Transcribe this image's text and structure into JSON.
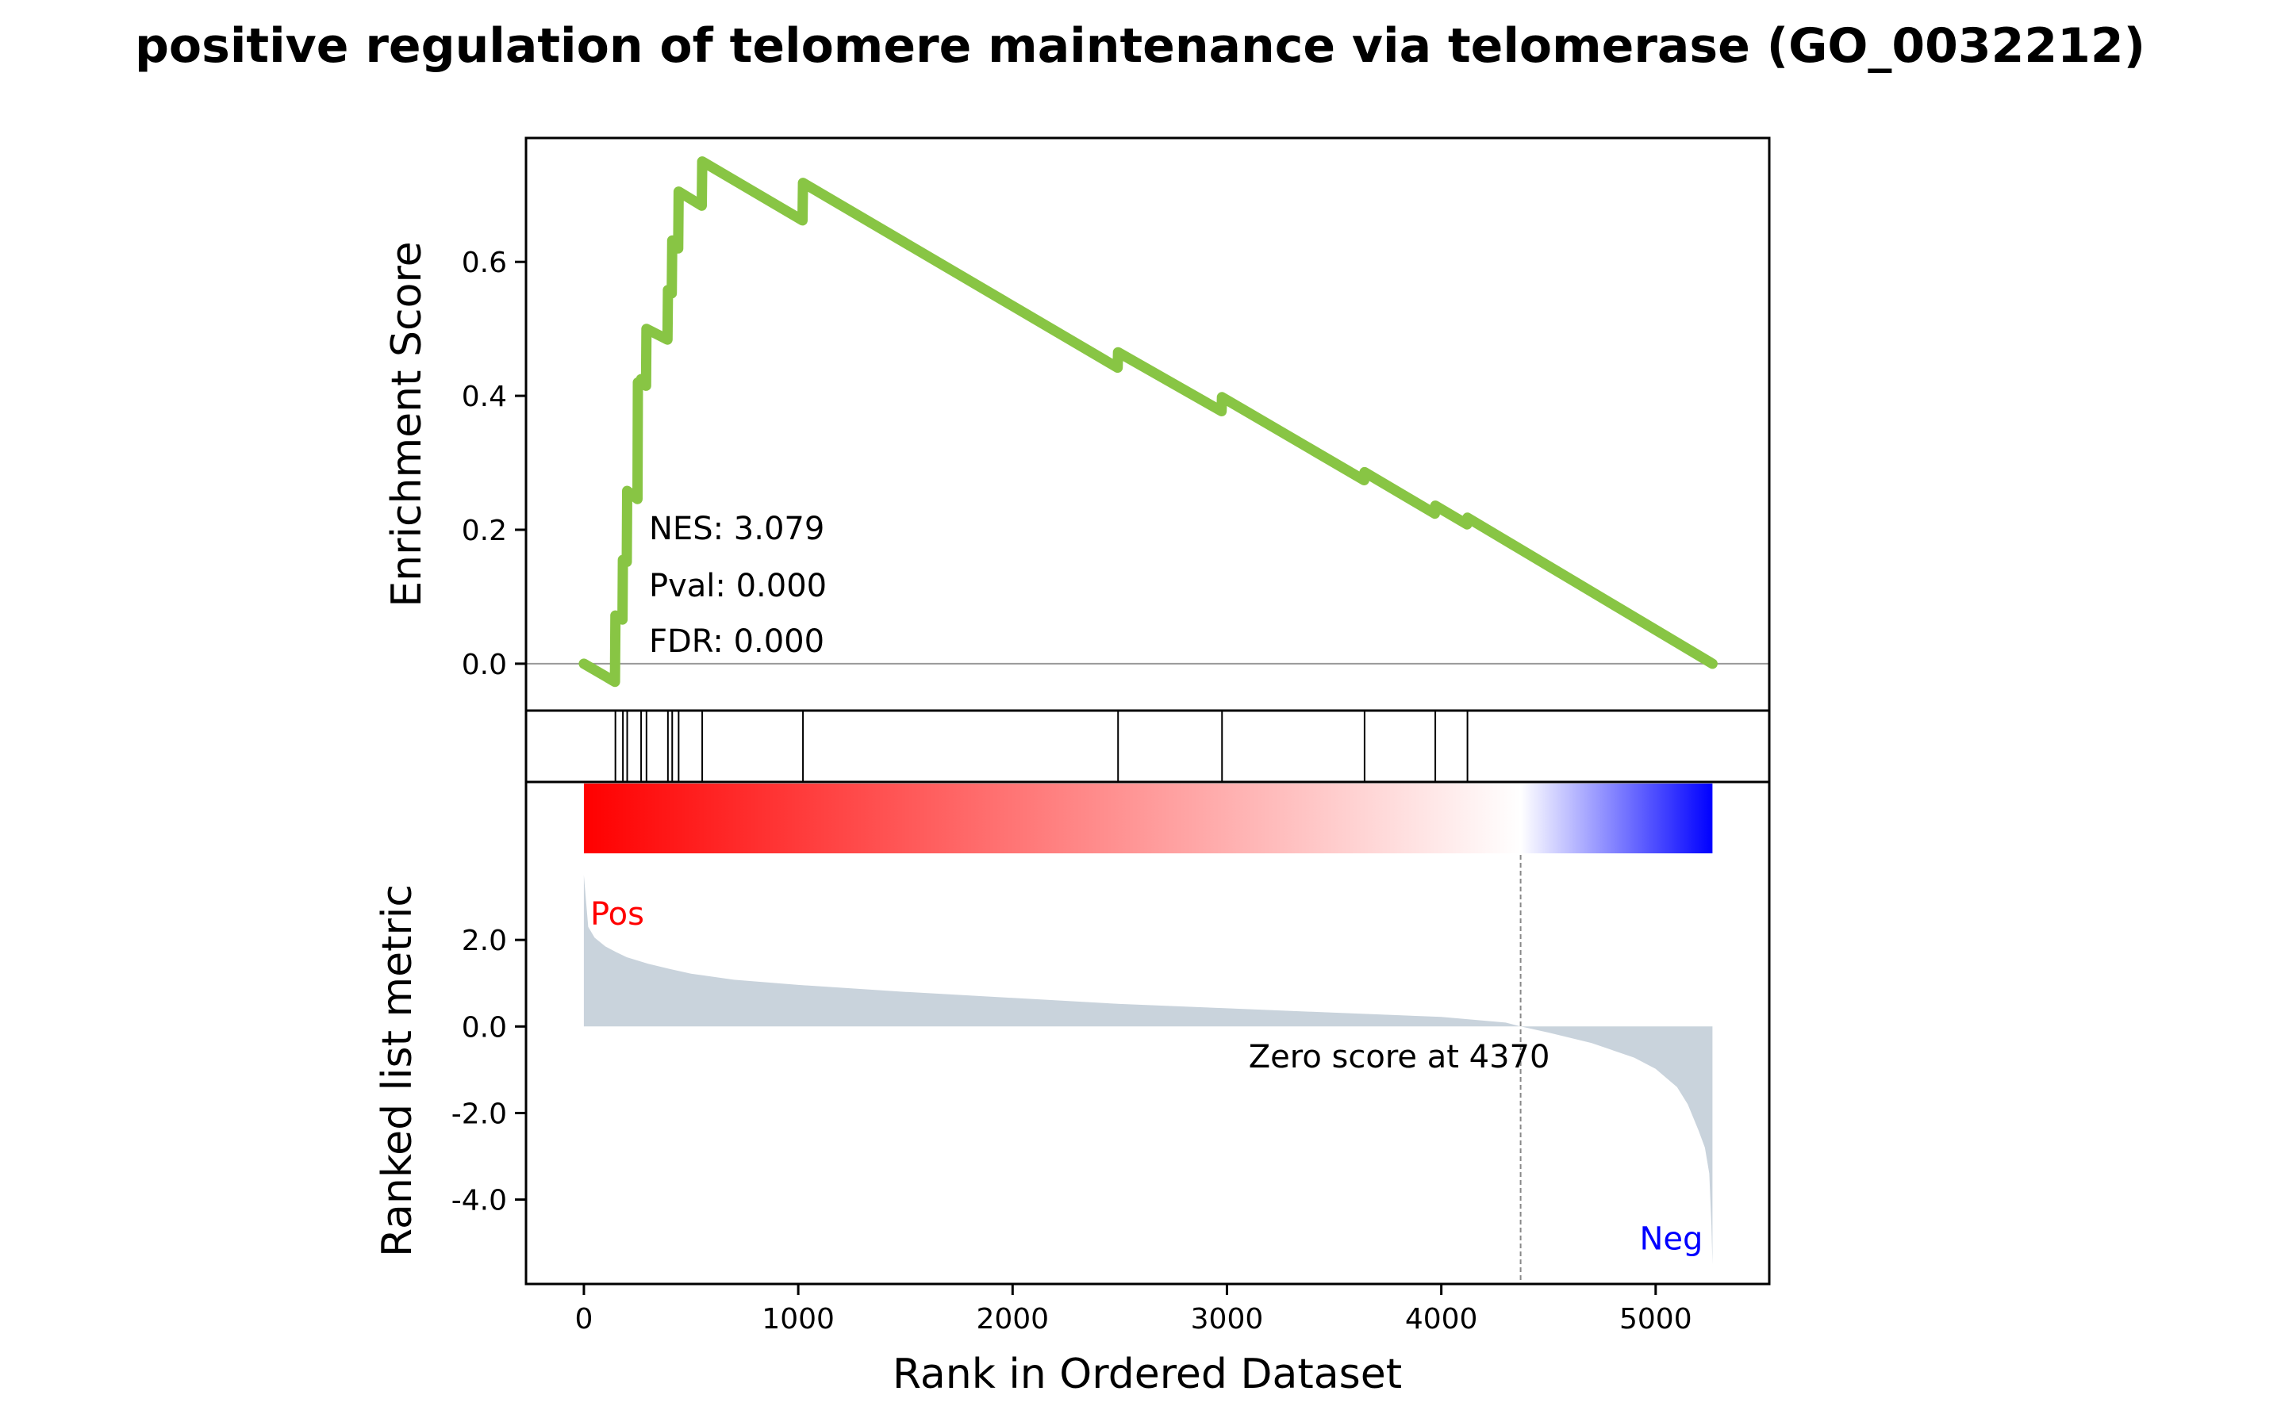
{
  "chart_data": {
    "type": "line",
    "title": "positive regulation of telomere maintenance via telomerase (GO_0032212)",
    "xlabel": "Rank in Ordered Dataset",
    "xlim": [
      -270,
      5530
    ],
    "x_ticks": [
      0,
      1000,
      2000,
      3000,
      4000,
      5000
    ],
    "x_tick_labels": [
      "0",
      "1000",
      "2000",
      "3000",
      "4000",
      "5000"
    ],
    "n_genes": 5265,
    "enrichment": {
      "ylabel": "Enrichment Score",
      "ylim": [
        -0.07,
        0.785
      ],
      "y_ticks": [
        0.0,
        0.2,
        0.4,
        0.6
      ],
      "y_tick_labels": [
        "0.0",
        "0.2",
        "0.4",
        "0.6"
      ],
      "line_color": "#88C544",
      "zero_line_color": "#999999",
      "es_curve": {
        "x": [
          0,
          145,
          147,
          180,
          182,
          200,
          202,
          250,
          252,
          265,
          267,
          290,
          292,
          390,
          392,
          410,
          412,
          440,
          442,
          550,
          552,
          1020,
          1022,
          2490,
          2492,
          2975,
          2977,
          3640,
          3642,
          3970,
          3972,
          4120,
          4122,
          5265
        ],
        "y": [
          0.0,
          -0.027,
          0.072,
          0.066,
          0.155,
          0.152,
          0.258,
          0.246,
          0.42,
          0.418,
          0.425,
          0.415,
          0.5,
          0.484,
          0.558,
          0.553,
          0.632,
          0.62,
          0.705,
          0.684,
          0.75,
          0.662,
          0.718,
          0.442,
          0.465,
          0.377,
          0.398,
          0.274,
          0.286,
          0.224,
          0.236,
          0.208,
          0.218,
          0.0
        ]
      },
      "annotations": [
        "NES: 3.079",
        "Pval: 0.000",
        "FDR: 0.000"
      ]
    },
    "hits": {
      "positions": [
        147,
        182,
        202,
        267,
        292,
        392,
        412,
        442,
        552,
        1022,
        2492,
        2977,
        3642,
        3972,
        4122
      ]
    },
    "colorbar": {
      "colors": [
        "#FF0000",
        "#FFFFFF",
        "#0000FF"
      ],
      "white_at_rank": 4370
    },
    "ranked_metric": {
      "ylabel": "Ranked list metric",
      "ylim": [
        -5.95,
        5.65
      ],
      "y_ticks": [
        2.0,
        0.0,
        -2.0,
        -4.0
      ],
      "y_tick_labels": [
        "2.0",
        "0.0",
        "-2.0",
        "-4.0"
      ],
      "fill_color": "#C9D3DC",
      "curve": {
        "x": [
          0,
          20,
          50,
          100,
          150,
          200,
          300,
          400,
          500,
          700,
          1000,
          1500,
          2000,
          2500,
          3000,
          3500,
          4000,
          4300,
          4370,
          4500,
          4700,
          4900,
          5000,
          5100,
          5150,
          5200,
          5230,
          5250,
          5260,
          5265
        ],
        "y": [
          3.5,
          2.3,
          2.05,
          1.85,
          1.72,
          1.6,
          1.45,
          1.33,
          1.22,
          1.08,
          0.96,
          0.8,
          0.66,
          0.52,
          0.42,
          0.32,
          0.22,
          0.09,
          0.0,
          -0.14,
          -0.38,
          -0.72,
          -0.98,
          -1.4,
          -1.8,
          -2.4,
          -2.8,
          -3.4,
          -4.6,
          -5.5
        ]
      },
      "zero_label": "Zero score at 4370",
      "pos_label": "Pos",
      "neg_label": "Neg",
      "pos_color": "#FF0000",
      "neg_color": "#0000FF"
    }
  }
}
